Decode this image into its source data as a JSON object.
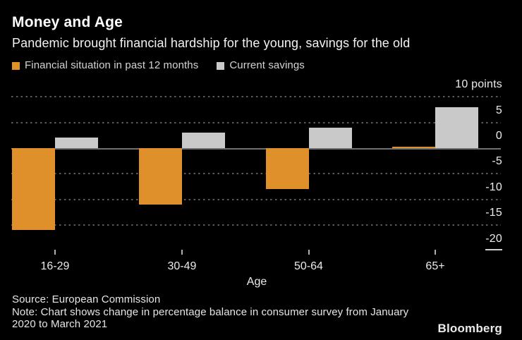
{
  "header": {
    "title": "Money and Age",
    "subtitle": "Pandemic brought financial hardship for the young, savings for the old"
  },
  "legend": [
    {
      "label": "Financial situation in past 12 months",
      "color": "#e0902b"
    },
    {
      "label": "Current savings",
      "color": "#c9c9c9"
    }
  ],
  "chart_data": {
    "type": "bar",
    "title": "Money and Age",
    "subtitle": "Pandemic brought financial hardship for the young, savings for the old",
    "categories": [
      "16-29",
      "30-49",
      "50-64",
      "65+"
    ],
    "series": [
      {
        "name": "Financial situation in past 12 months",
        "color": "#e0902b",
        "values": [
          -16,
          -11,
          -8,
          0.3
        ]
      },
      {
        "name": "Current savings",
        "color": "#c9c9c9",
        "values": [
          2,
          3,
          4,
          8
        ]
      }
    ],
    "xlabel": "Age",
    "ylabel": "points",
    "ylim": [
      -20,
      10
    ],
    "yticks": [
      10,
      5,
      0,
      -5,
      -10,
      -15,
      -20
    ],
    "ytick_labels": [
      "10 points",
      "5",
      "0",
      "-5",
      "-10",
      "-15",
      "-20"
    ],
    "grid": "dotted horizontal, solid zero line, short end mark at -20",
    "legend_position": "top-left",
    "axis_label_side": "right"
  },
  "footer": {
    "source": "Source: European Commission",
    "note_line1": "Note: Chart shows change in percentage balance in consumer survey from January",
    "note_line2": "2020 to March 2021",
    "brand": "Bloomberg"
  }
}
